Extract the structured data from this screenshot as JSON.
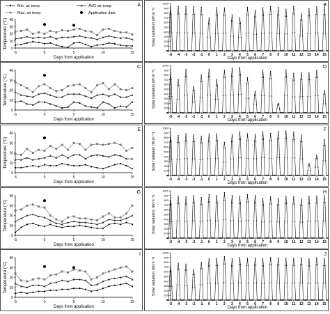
{
  "chart_data": [
    {
      "panel": "A",
      "type": "line",
      "xlabel": "Days from application",
      "ylabel": "Temperature (°C)",
      "xlim": [
        -5,
        15
      ],
      "ylim": [
        0,
        40
      ],
      "xticks": [
        "-5",
        "0",
        "5",
        "10",
        "15"
      ],
      "yticks": [
        "0",
        "10",
        "20",
        "30",
        "40"
      ],
      "legend": {
        "placement": "top",
        "entries": [
          "Min. air temp.",
          "Max. air temp.",
          "AVG air temp.",
          "Application date"
        ]
      },
      "x": [
        -5,
        -4,
        -3,
        -2,
        -1,
        0,
        1,
        2,
        3,
        4,
        5,
        6,
        7,
        8,
        9,
        10,
        11,
        12,
        13,
        14,
        15
      ],
      "series": [
        {
          "name": "Max. air temp.",
          "values": [
            23,
            24,
            26,
            20,
            22,
            20,
            24,
            22,
            25,
            24,
            26,
            27,
            24,
            23,
            18,
            26,
            27,
            24,
            22,
            22,
            19
          ]
        },
        {
          "name": "AVG air temp.",
          "values": [
            13,
            14,
            16,
            14,
            15,
            14,
            16,
            13,
            15,
            15,
            16,
            17,
            15,
            14,
            12,
            15,
            17,
            15,
            14,
            14,
            12
          ]
        },
        {
          "name": "Min. air temp.",
          "values": [
            4,
            5,
            7,
            9,
            8,
            6,
            7,
            4,
            2,
            1,
            7,
            8,
            5,
            2,
            4,
            5,
            7,
            6,
            4,
            3,
            3
          ]
        },
        {
          "name": "Application date",
          "points": [
            [
              0,
              33
            ],
            [
              5,
              32
            ]
          ]
        }
      ]
    },
    {
      "panel": "B",
      "type": "line",
      "xlabel": "Days from application",
      "ylabel": "Solar radiation (W.m⁻²)",
      "xlim": [
        -5,
        15
      ],
      "ylim": [
        0,
        1000
      ],
      "xticks": [
        "-5",
        "-4",
        "-3",
        "-2",
        "-1",
        "0",
        "1",
        "2",
        "3",
        "4",
        "5",
        "6",
        "7",
        "8",
        "9",
        "10",
        "11",
        "12",
        "13",
        "14",
        "15"
      ],
      "yticks": [
        "0",
        "100",
        "200",
        "300",
        "400",
        "500",
        "600",
        "700",
        "800",
        "900",
        "1000"
      ],
      "daily_peaks": [
        930,
        940,
        935,
        930,
        920,
        690,
        910,
        905,
        760,
        700,
        920,
        860,
        910,
        930,
        915,
        880,
        940,
        780,
        890,
        930,
        920
      ]
    },
    {
      "panel": "C",
      "type": "line",
      "xlabel": "Days from application",
      "ylabel": "Temperature (°C)",
      "xlim": [
        -5,
        15
      ],
      "ylim": [
        0,
        40
      ],
      "xticks": [
        "-5",
        "0",
        "5",
        "10",
        "15"
      ],
      "yticks": [
        "0",
        "10",
        "20",
        "30",
        "40"
      ],
      "x": [
        -5,
        -4,
        -3,
        -2,
        -1,
        0,
        1,
        2,
        3,
        4,
        5,
        6,
        7,
        8,
        9,
        10,
        11,
        12,
        13,
        14,
        15
      ],
      "series": [
        {
          "name": "Max. air temp.",
          "values": [
            28,
            25,
            22,
            18,
            24,
            26,
            22,
            19,
            20,
            24,
            25,
            26,
            22,
            18,
            25,
            27,
            21,
            26,
            21,
            20,
            22
          ]
        },
        {
          "name": "AVG air temp.",
          "values": [
            18,
            15,
            14,
            13,
            16,
            17,
            15,
            13,
            13,
            16,
            16,
            16,
            14,
            12,
            15,
            16,
            14,
            16,
            13,
            13,
            15
          ]
        },
        {
          "name": "Min. air temp.",
          "values": [
            8,
            9,
            6,
            5,
            8,
            8,
            6,
            4,
            2,
            3,
            8,
            7,
            4,
            3,
            2,
            8,
            6,
            2,
            4,
            3,
            8
          ]
        },
        {
          "name": "Application date",
          "points": [
            [
              0,
              35
            ]
          ]
        }
      ]
    },
    {
      "panel": "D",
      "type": "line",
      "xlabel": "Days from application",
      "ylabel": "Solar radiation (W.m⁻²)",
      "xlim": [
        -5,
        15
      ],
      "ylim": [
        0,
        1000
      ],
      "xticks": [
        "-5",
        "-4",
        "-3",
        "-2",
        "-1",
        "0",
        "1",
        "2",
        "3",
        "4",
        "5",
        "6",
        "7",
        "8",
        "9",
        "10",
        "11",
        "12",
        "13",
        "14",
        "15"
      ],
      "yticks": [
        "0",
        "100",
        "200",
        "300",
        "400",
        "500",
        "600",
        "700",
        "800",
        "900",
        "1000"
      ],
      "daily_peaks": [
        850,
        700,
        920,
        560,
        800,
        920,
        700,
        900,
        930,
        960,
        740,
        450,
        900,
        870,
        200,
        910,
        830,
        850,
        840,
        900,
        470
      ]
    },
    {
      "panel": "E",
      "type": "line",
      "xlabel": "Days from application",
      "ylabel": "Temperature (°C)",
      "xlim": [
        -5,
        15
      ],
      "ylim": [
        0,
        40
      ],
      "xticks": [
        "-5",
        "0",
        "5",
        "10",
        "15"
      ],
      "yticks": [
        "0",
        "10",
        "20",
        "30",
        "40"
      ],
      "x": [
        -5,
        -4,
        -3,
        -2,
        -1,
        0,
        1,
        2,
        3,
        4,
        5,
        6,
        7,
        8,
        9,
        10,
        11,
        12,
        13,
        14,
        15
      ],
      "series": [
        {
          "name": "Max. air temp.",
          "values": [
            19,
            18,
            24,
            20,
            23,
            22,
            27,
            24,
            28,
            23,
            30,
            29,
            23,
            28,
            29,
            28,
            29,
            30,
            28,
            22,
            25
          ]
        },
        {
          "name": "AVG air temp.",
          "values": [
            13,
            13,
            15,
            13,
            14,
            15,
            17,
            15,
            18,
            15,
            18,
            18,
            14,
            17,
            18,
            17,
            16,
            18,
            17,
            14,
            14
          ]
        },
        {
          "name": "Min. air temp.",
          "values": [
            5,
            5,
            6,
            7,
            6,
            8,
            7,
            7,
            9,
            8,
            7,
            7,
            8,
            6,
            5,
            4,
            6,
            8,
            9,
            7,
            4
          ]
        },
        {
          "name": "Application date",
          "points": [
            [
              0,
              35
            ]
          ]
        }
      ]
    },
    {
      "panel": "F",
      "type": "line",
      "xlabel": "Days from application",
      "ylabel": "Solar radiation (W.m⁻²)",
      "xlim": [
        -5,
        15
      ],
      "ylim": [
        0,
        1000
      ],
      "xticks": [
        "-5",
        "-4",
        "-3",
        "-2",
        "-1",
        "0",
        "1",
        "2",
        "3",
        "4",
        "5",
        "6",
        "7",
        "8",
        "9",
        "10",
        "11",
        "12",
        "13",
        "14",
        "15"
      ],
      "yticks": [
        "0",
        "100",
        "200",
        "300",
        "400",
        "500",
        "600",
        "700",
        "800",
        "900",
        "1000"
      ],
      "daily_peaks": [
        860,
        840,
        880,
        860,
        830,
        870,
        880,
        700,
        860,
        920,
        880,
        870,
        920,
        890,
        930,
        940,
        910,
        860,
        250,
        430,
        760
      ]
    },
    {
      "panel": "G",
      "type": "line",
      "xlabel": "Days from application",
      "ylabel": "Temperature (°C)",
      "xlim": [
        -5,
        15
      ],
      "ylim": [
        0,
        40
      ],
      "xticks": [
        "-5",
        "0",
        "5",
        "10",
        "15"
      ],
      "yticks": [
        "0",
        "10",
        "20",
        "30",
        "40"
      ],
      "x": [
        -5,
        -4,
        -3,
        -2,
        -1,
        0,
        1,
        2,
        3,
        4,
        5,
        6,
        7,
        8,
        9,
        10,
        11,
        12,
        13,
        14,
        15
      ],
      "series": [
        {
          "name": "Max. air temp.",
          "values": [
            25,
            26,
            30,
            31,
            29,
            28,
            20,
            16,
            14,
            18,
            19,
            17,
            17,
            16,
            15,
            19,
            22,
            18,
            18,
            22,
            30
          ]
        },
        {
          "name": "AVG air temp.",
          "values": [
            14,
            17,
            20,
            21,
            19,
            18,
            15,
            12,
            11,
            13,
            14,
            13,
            13,
            12,
            11,
            13,
            16,
            15,
            15,
            17,
            20
          ]
        },
        {
          "name": "Min. air temp.",
          "values": [
            3,
            8,
            11,
            12,
            10,
            9,
            11,
            9,
            8,
            9,
            9,
            10,
            9,
            8,
            7,
            7,
            11,
            12,
            11,
            13,
            11
          ]
        },
        {
          "name": "Application date",
          "points": [
            [
              0,
              35
            ]
          ]
        }
      ]
    },
    {
      "panel": "H",
      "type": "line",
      "xlabel": "Days from application",
      "ylabel": "Solar radiation (W.m⁻²)",
      "xlim": [
        -5,
        15
      ],
      "ylim": [
        0,
        1000
      ],
      "xticks": [
        "-5",
        "-4",
        "-3",
        "-2",
        "-1",
        "0",
        "1",
        "2",
        "3",
        "4",
        "5",
        "6",
        "7",
        "8",
        "9",
        "10",
        "11",
        "12",
        "13",
        "14",
        "15"
      ],
      "yticks": [
        "0",
        "100",
        "200",
        "300",
        "400",
        "500",
        "600",
        "700",
        "800",
        "900",
        "1000"
      ],
      "daily_peaks": [
        860,
        880,
        870,
        900,
        860,
        920,
        900,
        960,
        900,
        880,
        920,
        900,
        840,
        870,
        840,
        880,
        870,
        830,
        880,
        890,
        900
      ]
    },
    {
      "panel": "I",
      "type": "line",
      "xlabel": "Days from application",
      "ylabel": "Temperature (°C)",
      "xlim": [
        -5,
        15
      ],
      "ylim": [
        0,
        40
      ],
      "xticks": [
        "-5",
        "0",
        "5",
        "10",
        "15"
      ],
      "yticks": [
        "0",
        "10",
        "20",
        "30",
        "40"
      ],
      "x": [
        -5,
        -4,
        -3,
        -2,
        -1,
        0,
        1,
        2,
        3,
        4,
        5,
        6,
        7,
        8,
        9,
        10,
        11,
        12,
        13,
        14,
        15
      ],
      "series": [
        {
          "name": "Max. air temp.",
          "values": [
            24,
            17,
            16,
            18,
            19,
            18,
            22,
            23,
            26,
            25,
            28,
            27,
            26,
            18,
            20,
            24,
            26,
            28,
            30,
            31,
            26
          ]
        },
        {
          "name": "AVG air temp.",
          "values": [
            14,
            11,
            10,
            12,
            12,
            11,
            14,
            15,
            17,
            16,
            18,
            18,
            17,
            12,
            13,
            16,
            18,
            19,
            20,
            21,
            18
          ]
        },
        {
          "name": "Min. air temp.",
          "values": [
            4,
            5,
            4,
            5,
            6,
            6,
            7,
            7,
            8,
            8,
            9,
            9,
            8,
            6,
            7,
            9,
            11,
            12,
            13,
            14,
            11
          ]
        },
        {
          "name": "Application date",
          "points": [
            [
              0,
              31
            ],
            [
              5,
              30
            ]
          ]
        }
      ]
    },
    {
      "panel": "J",
      "type": "line",
      "xlabel": "Days from application",
      "ylabel": "Solar radiation (W.m⁻²)",
      "xlim": [
        -5,
        15
      ],
      "ylim": [
        0,
        1000
      ],
      "xticks": [
        "-5",
        "-4",
        "-3",
        "-2",
        "-1",
        "0",
        "1",
        "2",
        "3",
        "4",
        "5",
        "6",
        "7",
        "8",
        "9",
        "10",
        "11",
        "12",
        "13",
        "14",
        "15"
      ],
      "yticks": [
        "0",
        "100",
        "200",
        "300",
        "400",
        "500",
        "600",
        "700",
        "800",
        "900",
        "1000"
      ],
      "daily_peaks": [
        720,
        780,
        760,
        650,
        800,
        870,
        880,
        920,
        870,
        900,
        880,
        890,
        870,
        900,
        890,
        880,
        880,
        900,
        870,
        900,
        880
      ]
    }
  ]
}
